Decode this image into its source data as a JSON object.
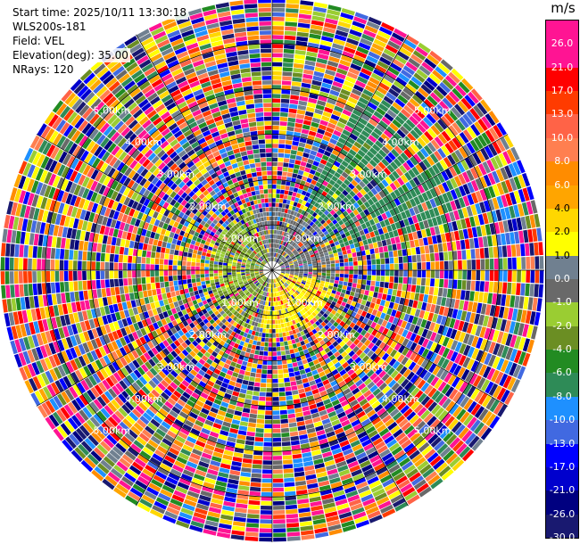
{
  "info": {
    "start_time": "Start time: 2025/10/11 13:30:18",
    "instrument": "WLS200s-181",
    "field": "Field: VEL",
    "elevation": "Elevation(deg): 35.00",
    "nrays": "NRays: 120"
  },
  "colorbar": {
    "unit": "m/s",
    "ticks": [
      "26.0",
      "21.0",
      "17.0",
      "13.0",
      "10.0",
      "8.0",
      "6.0",
      "4.0",
      "2.0",
      "1.0",
      "0.0",
      "-1.0",
      "-2.0",
      "-4.0",
      "-6.0",
      "-8.0",
      "-10.0",
      "-13.0",
      "-17.0",
      "-21.0",
      "-26.0",
      "-30.0"
    ],
    "colors": [
      "#ff1493",
      "#ff1493",
      "#ff0000",
      "#ff3b00",
      "#ff6347",
      "#ff7f50",
      "#ff8c00",
      "#ffa500",
      "#ffd700",
      "#ffff00",
      "#708090",
      "#696969",
      "#9acd32",
      "#6b8e23",
      "#228b22",
      "#2e8b57",
      "#1e90ff",
      "#4169e1",
      "#0000ff",
      "#0000cd",
      "#000080",
      "#191970"
    ]
  },
  "chart_data": {
    "type": "ppi",
    "field": "VEL",
    "units": "m/s",
    "elevation_deg": 35.0,
    "n_rays": 120,
    "range_ring_labels": [
      "1.00km",
      "2.00km",
      "3.00km",
      "4.00km",
      "5.00km"
    ],
    "range_ring_km": [
      1,
      2,
      3,
      4,
      5
    ],
    "max_range_km": 6.0,
    "color_levels": [
      -30,
      -26,
      -21,
      -17,
      -13,
      -10,
      -8,
      -6,
      -4,
      -2,
      -1,
      0,
      1,
      2,
      4,
      6,
      8,
      10,
      13,
      17,
      21,
      26,
      30
    ],
    "azimuth_spokes_deg": [
      0,
      30,
      60,
      90,
      120,
      150,
      180,
      210,
      240,
      270,
      300,
      330
    ]
  }
}
